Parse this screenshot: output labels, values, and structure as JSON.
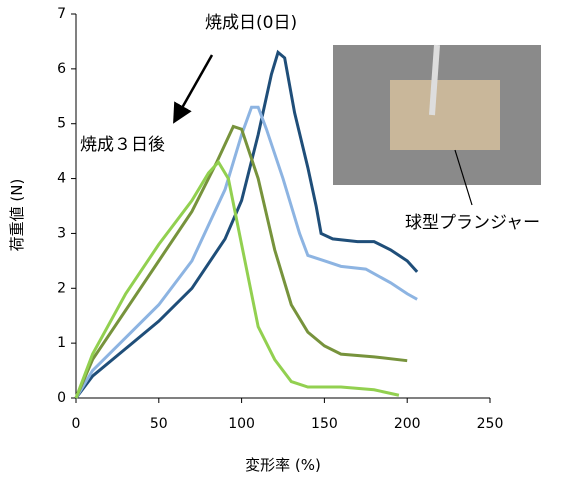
{
  "chart_data": {
    "type": "line",
    "x_label": "変形率 (%)",
    "y_label": "荷重値 (N)",
    "xlim": [
      0,
      250
    ],
    "xticks": [
      0,
      50,
      100,
      150,
      200,
      250
    ],
    "ylim": [
      0,
      7
    ],
    "yticks": [
      0,
      1,
      2,
      3,
      4,
      5,
      6,
      7
    ],
    "annotations": [
      "焼成日(0日)",
      "焼成３日後",
      "球型プランジャー"
    ],
    "series": [
      {
        "color": "#1f4e79",
        "x": [
          0,
          10,
          30,
          50,
          70,
          90,
          100,
          110,
          118,
          122,
          126,
          132,
          140,
          145,
          148,
          155,
          170,
          180,
          190,
          200,
          206
        ],
        "values": [
          0,
          0.4,
          0.9,
          1.4,
          2.0,
          2.9,
          3.6,
          4.8,
          5.9,
          6.3,
          6.2,
          5.2,
          4.2,
          3.5,
          3.0,
          2.9,
          2.85,
          2.85,
          2.7,
          2.5,
          2.3
        ]
      },
      {
        "color": "#8db4e2",
        "x": [
          0,
          10,
          30,
          50,
          70,
          90,
          100,
          106,
          110,
          115,
          125,
          135,
          140,
          150,
          160,
          175,
          190,
          200,
          206
        ],
        "values": [
          0,
          0.5,
          1.1,
          1.7,
          2.5,
          3.8,
          4.8,
          5.3,
          5.3,
          4.9,
          4.0,
          3.0,
          2.6,
          2.5,
          2.4,
          2.35,
          2.1,
          1.9,
          1.8
        ]
      },
      {
        "color": "#77933c",
        "x": [
          0,
          10,
          30,
          50,
          70,
          85,
          95,
          100,
          110,
          120,
          130,
          140,
          150,
          160,
          180,
          200
        ],
        "values": [
          0,
          0.7,
          1.6,
          2.5,
          3.4,
          4.3,
          4.95,
          4.9,
          4.0,
          2.7,
          1.7,
          1.2,
          0.95,
          0.8,
          0.75,
          0.68
        ]
      },
      {
        "color": "#92d050",
        "x": [
          0,
          10,
          30,
          50,
          70,
          80,
          86,
          92,
          100,
          110,
          120,
          130,
          140,
          160,
          180,
          195
        ],
        "values": [
          0,
          0.8,
          1.9,
          2.8,
          3.6,
          4.1,
          4.3,
          4.0,
          2.8,
          1.3,
          0.7,
          0.3,
          0.2,
          0.2,
          0.15,
          0.05
        ]
      }
    ]
  }
}
